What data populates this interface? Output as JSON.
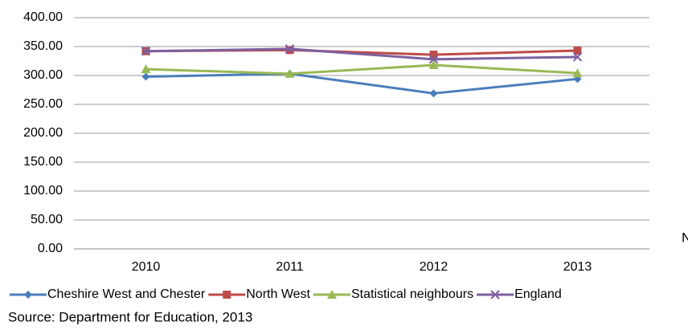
{
  "chart_data": {
    "type": "line",
    "categories": [
      "2010",
      "2011",
      "2012",
      "2013"
    ],
    "series": [
      {
        "name": "Cheshire West and Chester",
        "color": "#4a7ebb",
        "marker": "diamond",
        "values": [
          298,
          303,
          269,
          294
        ]
      },
      {
        "name": "North West",
        "color": "#be4b48",
        "marker": "square",
        "values": [
          342,
          344,
          336,
          343
        ]
      },
      {
        "name": "Statistical neighbours",
        "color": "#98b954",
        "marker": "triangle",
        "values": [
          311,
          303,
          318,
          304
        ]
      },
      {
        "name": "England",
        "color": "#7d60a0",
        "marker": "x",
        "values": [
          342,
          346,
          328,
          332
        ]
      }
    ],
    "ylim": [
      0,
      400
    ],
    "yticks": [
      {
        "value": 0,
        "label": "0.00"
      },
      {
        "value": 50,
        "label": "50.00"
      },
      {
        "value": 100,
        "label": "100.00"
      },
      {
        "value": 150,
        "label": "150.00"
      },
      {
        "value": 200,
        "label": "200.00"
      },
      {
        "value": 250,
        "label": "250.00"
      },
      {
        "value": 300,
        "label": "300.00"
      },
      {
        "value": 350,
        "label": "350.00"
      },
      {
        "value": 400,
        "label": "400.00"
      }
    ],
    "grid": true,
    "legend": "bottom",
    "source": "Source: Department for Education, 2013",
    "side_text": "N"
  }
}
